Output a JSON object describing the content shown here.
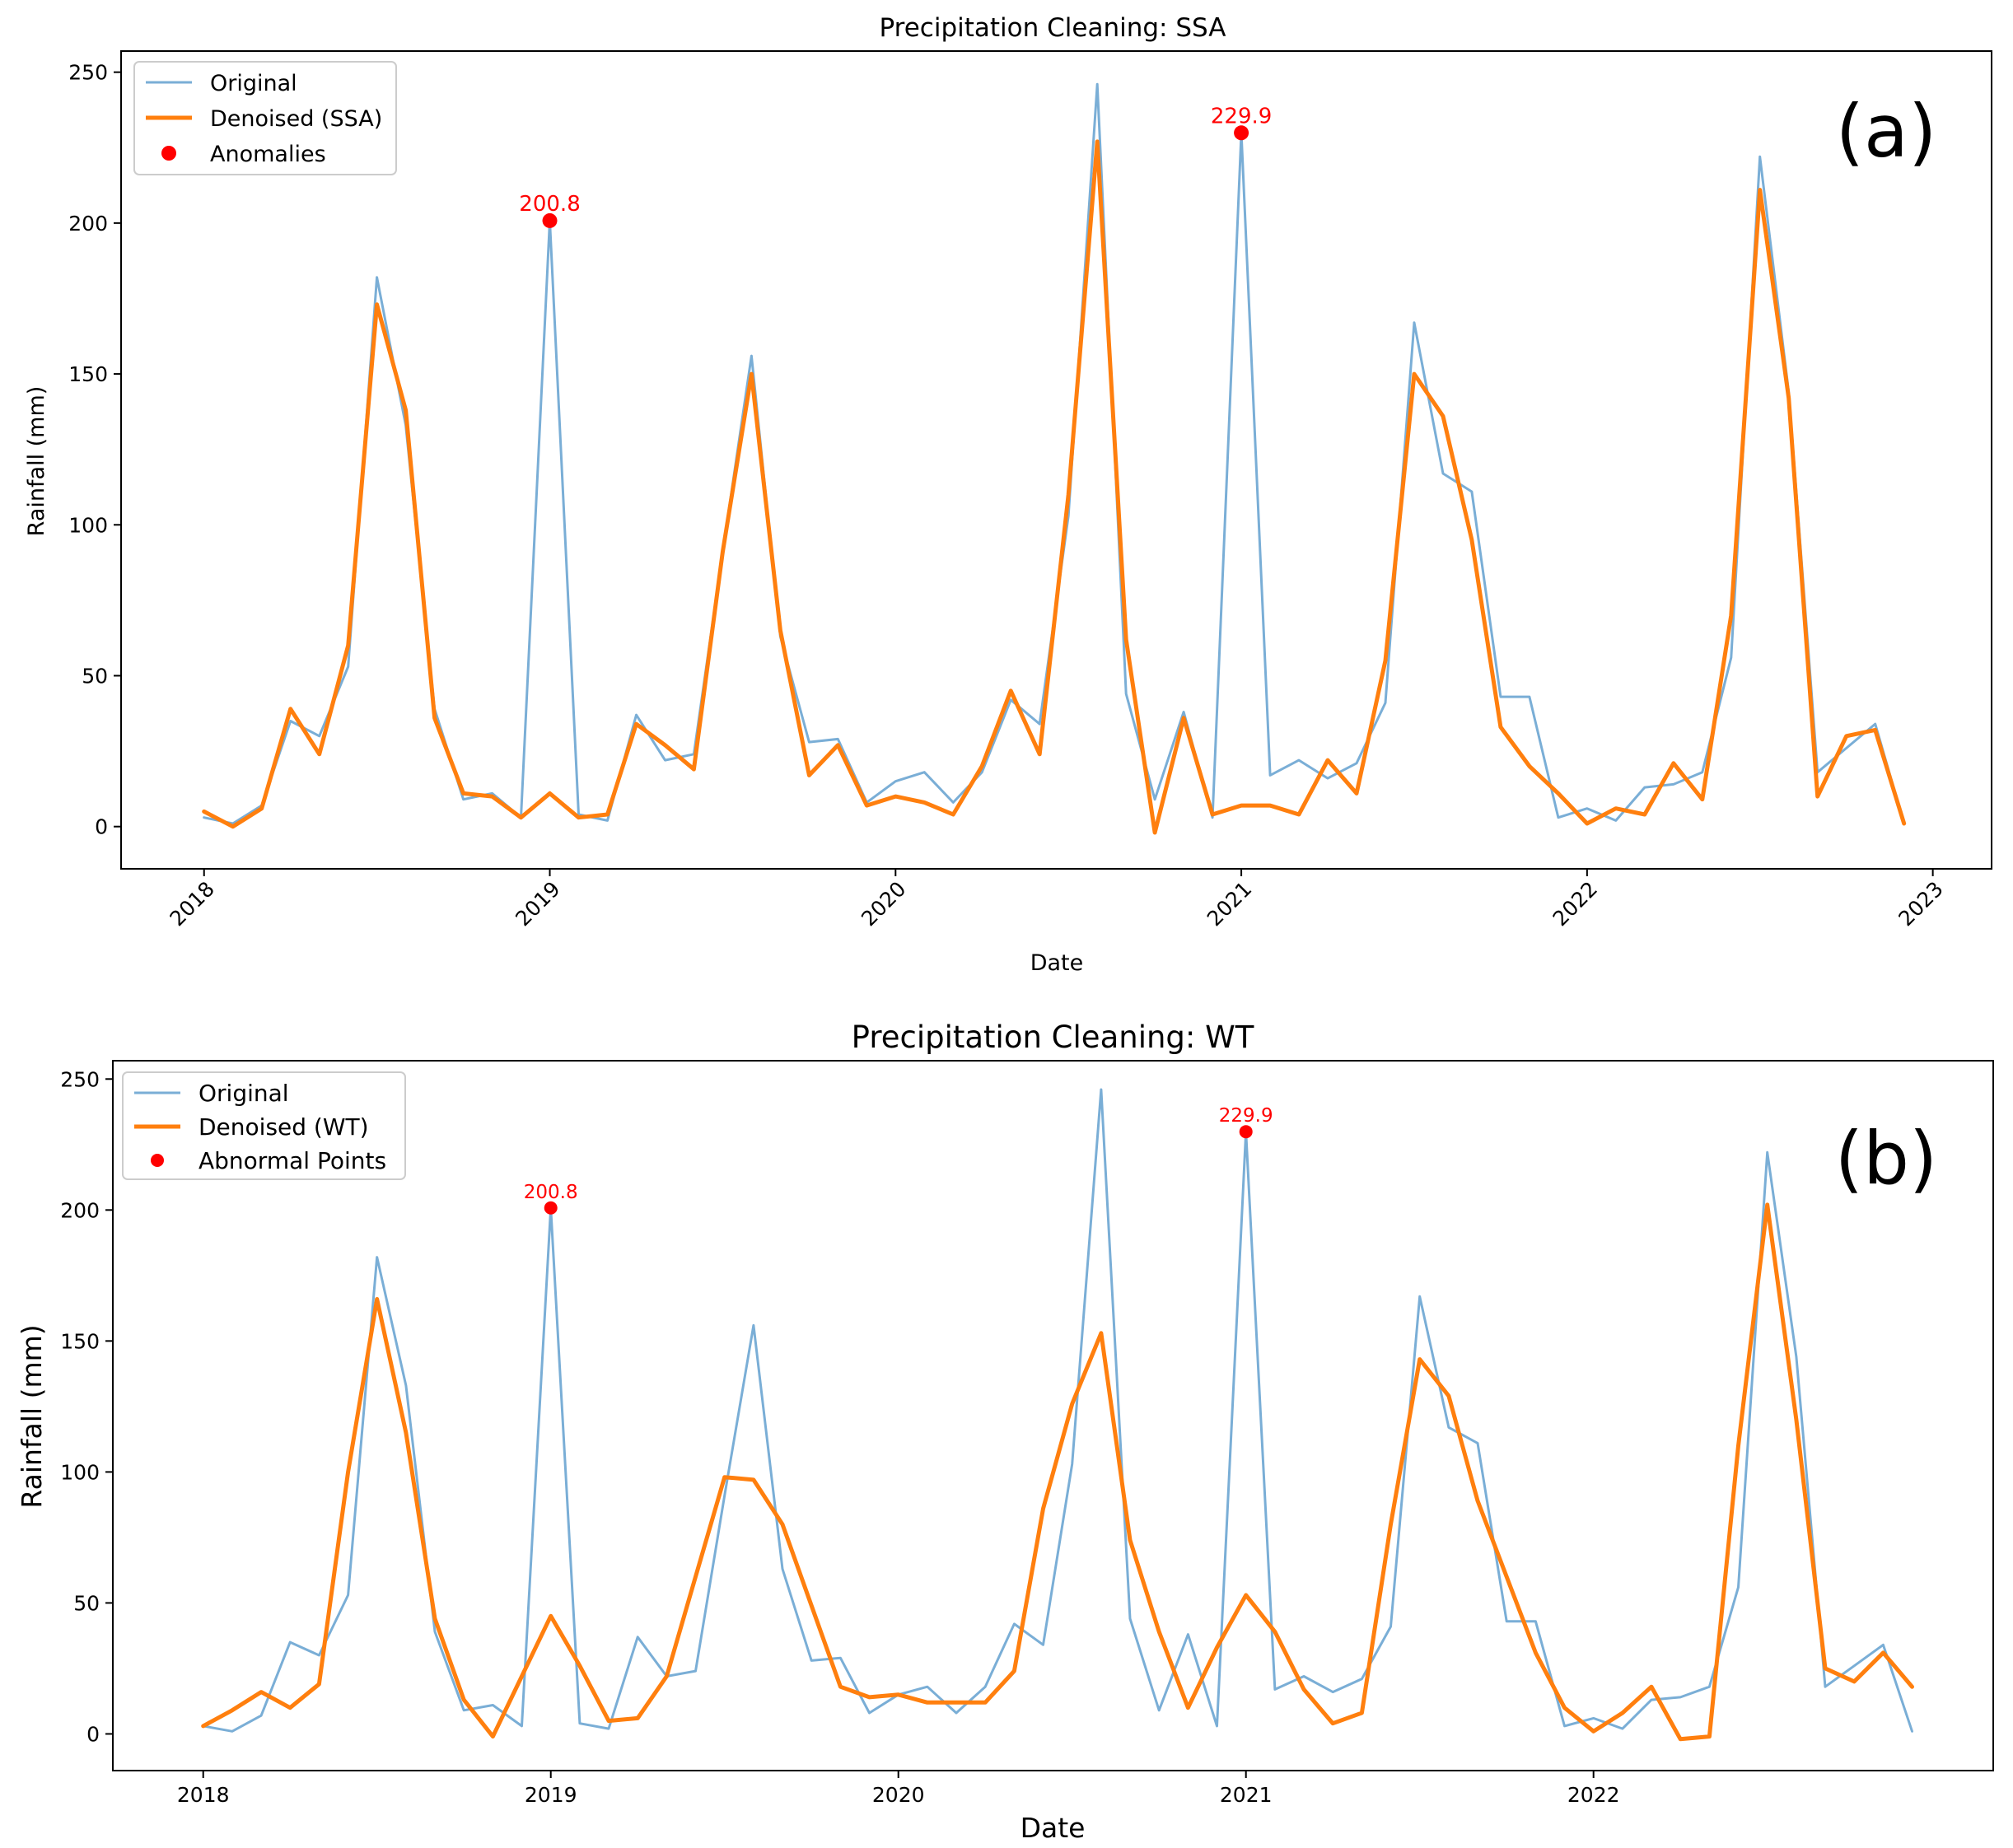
{
  "chart_data": [
    {
      "type": "line",
      "panel_label": "(a)",
      "title": "Precipitation Cleaning: SSA",
      "xlabel": "Date",
      "ylabel": "Rainfall (mm)",
      "xlim": [
        2017.76,
        2023.17
      ],
      "ylim": [
        -14,
        257
      ],
      "xticks": [
        2018,
        2019,
        2020,
        2021,
        2022,
        2023
      ],
      "xtick_labels": [
        "2018",
        "2019",
        "2020",
        "2021",
        "2022",
        "2023"
      ],
      "xtick_rotation": 45,
      "yticks": [
        0,
        50,
        100,
        150,
        200,
        250
      ],
      "ytick_labels": [
        "0",
        "50",
        "100",
        "150",
        "200",
        "250"
      ],
      "grid": false,
      "legend_position": "upper-left",
      "series": [
        {
          "name": "Original",
          "color": "#7aaed6",
          "linewidth": 3,
          "values": [
            3,
            1,
            7,
            35,
            30,
            53,
            182,
            133,
            39,
            9,
            11,
            3,
            200.8,
            4,
            2,
            37,
            22,
            24,
            91,
            156,
            63,
            28,
            29,
            8,
            15,
            18,
            8,
            18,
            42,
            34,
            103,
            246,
            44,
            9,
            38,
            3,
            229.9,
            17,
            22,
            16,
            21,
            41,
            167,
            117,
            111,
            43,
            43,
            3,
            6,
            2,
            13,
            14,
            18,
            56,
            222,
            144,
            18,
            26,
            34,
            1
          ]
        },
        {
          "name": "Denoised (SSA)",
          "color": "#ff7f0e",
          "linewidth": 5,
          "values": [
            5,
            0,
            6,
            39,
            24,
            60,
            173,
            138,
            36,
            11,
            10,
            3,
            11,
            3,
            4,
            34,
            27,
            19,
            91,
            150,
            65,
            17,
            27,
            7,
            10,
            8,
            4,
            20,
            45,
            24,
            110,
            227,
            62,
            -2,
            36,
            4,
            7,
            7,
            4,
            22,
            11,
            55,
            150,
            136,
            95,
            33,
            20,
            11,
            1,
            6,
            4,
            21,
            9,
            70,
            211,
            142,
            10,
            30,
            32,
            1
          ]
        },
        {
          "name": "Anomalies",
          "type": "scatter",
          "color": "#ff0000",
          "points": [
            {
              "x": 2019.0,
              "y": 200.8,
              "label": "200.8"
            },
            {
              "x": 2021.0,
              "y": 229.9,
              "label": "229.9"
            }
          ]
        }
      ]
    },
    {
      "type": "line",
      "panel_label": "(b)",
      "title": "Precipitation Cleaning: WT",
      "xlabel": "Date",
      "ylabel": "Rainfall (mm)",
      "xlim": [
        2017.74,
        2023.15
      ],
      "ylim": [
        -14,
        257
      ],
      "xticks": [
        2018,
        2019,
        2020,
        2021,
        2022
      ],
      "xtick_labels": [
        "2018",
        "2019",
        "2020",
        "2021",
        "2022"
      ],
      "xtick_rotation": 0,
      "yticks": [
        0,
        50,
        100,
        150,
        200,
        250
      ],
      "ytick_labels": [
        "0",
        "50",
        "100",
        "150",
        "200",
        "250"
      ],
      "grid": false,
      "legend_position": "upper-left",
      "series": [
        {
          "name": "Original",
          "color": "#7aaed6",
          "linewidth": 3,
          "values": [
            3,
            1,
            7,
            35,
            30,
            53,
            182,
            133,
            39,
            9,
            11,
            3,
            200.8,
            4,
            2,
            37,
            22,
            24,
            91,
            156,
            63,
            28,
            29,
            8,
            15,
            18,
            8,
            18,
            42,
            34,
            103,
            246,
            44,
            9,
            38,
            3,
            229.9,
            17,
            22,
            16,
            21,
            41,
            167,
            117,
            111,
            43,
            43,
            3,
            6,
            2,
            13,
            14,
            18,
            56,
            222,
            144,
            18,
            26,
            34,
            1
          ]
        },
        {
          "name": "Denoised (WT)",
          "color": "#ff7f0e",
          "linewidth": 5,
          "values": [
            3,
            9,
            16,
            10,
            19,
            100,
            166,
            115,
            44,
            13,
            -1,
            22,
            45,
            26,
            5,
            6,
            22,
            60,
            98,
            97,
            80,
            49,
            18,
            14,
            15,
            12,
            12,
            12,
            24,
            86,
            126,
            153,
            74,
            39,
            10,
            33,
            53,
            39,
            17,
            4,
            8,
            80,
            143,
            129,
            89,
            60,
            31,
            10,
            1,
            8,
            18,
            -2,
            -1,
            110,
            202,
            120,
            25,
            20,
            31,
            18
          ]
        },
        {
          "name": "Abnormal Points",
          "type": "scatter",
          "color": "#ff0000",
          "points": [
            {
              "x": 2019.0,
              "y": 200.8,
              "label": "200.8"
            },
            {
              "x": 2021.0,
              "y": 229.9,
              "label": "229.9"
            }
          ]
        }
      ]
    }
  ]
}
